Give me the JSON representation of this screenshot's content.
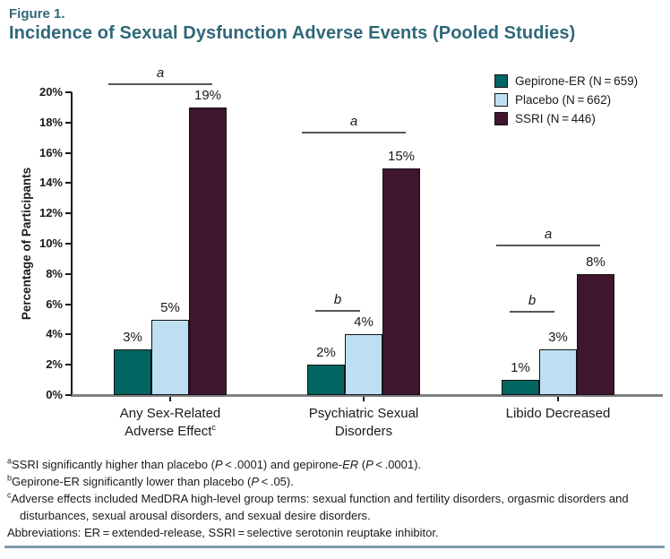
{
  "figure": {
    "label": "Figure 1.",
    "title": "Incidence of Sexual Dysfunction Adverse Events (Pooled Studies)"
  },
  "chart_data": {
    "type": "bar",
    "title": "Incidence of Sexual Dysfunction Adverse Events (Pooled Studies)",
    "ylabel": "Percentage of Participants",
    "ylim": [
      0,
      20
    ],
    "ytick_step": 2,
    "ytick_suffix": "%",
    "value_label_suffix": "%",
    "grid": false,
    "legend_position": "top-right",
    "categories": [
      {
        "name": "Any Sex-Related Adverse Effectᶜ",
        "lines": [
          [
            {
              "t": "Any Sex-Related"
            }
          ],
          [
            {
              "t": "Adverse Effect"
            },
            {
              "t": "c",
              "sup": true
            }
          ]
        ]
      },
      {
        "name": "Psychiatric Sexual Disorders",
        "lines": [
          [
            {
              "t": "Psychiatric Sexual"
            }
          ],
          [
            {
              "t": "Disorders"
            }
          ]
        ]
      },
      {
        "name": "Libido Decreased",
        "lines": [
          [
            {
              "t": "Libido Decreased"
            }
          ]
        ]
      }
    ],
    "series": [
      {
        "name": "Gepirone-ER (N = 659)",
        "color": "#016662",
        "values": [
          3,
          2,
          1
        ]
      },
      {
        "name": "Placebo (N = 662)",
        "color": "#bedff2",
        "values": [
          5,
          4,
          3
        ]
      },
      {
        "name": "SSRI (N = 446)",
        "color": "#40152e",
        "values": [
          19,
          15,
          8
        ]
      }
    ],
    "annotations": [
      {
        "text": "a",
        "category": 0,
        "from_series": 0,
        "to_series": 2,
        "height_pct": 20.5
      },
      {
        "text": "a",
        "category": 1,
        "from_series": 0,
        "to_series": 2,
        "height_pct": 17.3
      },
      {
        "text": "b",
        "category": 1,
        "from_series": 0,
        "to_series": 1,
        "height_pct": 5.5
      },
      {
        "text": "a",
        "category": 2,
        "from_series": 0,
        "to_series": 2,
        "height_pct": 9.8
      },
      {
        "text": "b",
        "category": 2,
        "from_series": 0,
        "to_series": 1,
        "height_pct": 5.45
      }
    ]
  },
  "footnotes": [
    {
      "indent": false,
      "segments": [
        {
          "t": "a",
          "sup": true
        },
        {
          "t": "SSRI significantly higher than placebo ("
        },
        {
          "t": "P",
          "i": true
        },
        {
          "t": " < .0001) and gepirone-"
        },
        {
          "t": "ER",
          "i": true
        },
        {
          "t": " ("
        },
        {
          "t": "P",
          "i": true
        },
        {
          "t": " < .0001)."
        }
      ]
    },
    {
      "indent": false,
      "segments": [
        {
          "t": "b",
          "sup": true
        },
        {
          "t": "Gepirone-ER significantly lower than placebo ("
        },
        {
          "t": "P",
          "i": true
        },
        {
          "t": " < .05)."
        }
      ]
    },
    {
      "indent": false,
      "segments": [
        {
          "t": "c",
          "sup": true
        },
        {
          "t": "Adverse effects included MedDRA high-level group terms: sexual function and fertility disorders, orgasmic disorders and"
        }
      ]
    },
    {
      "indent": true,
      "segments": [
        {
          "t": "disturbances, sexual arousal disorders, and sexual desire disorders."
        }
      ]
    },
    {
      "indent": false,
      "segments": [
        {
          "t": "Abbreviations: ER = extended-release, SSRI = selective serotonin reuptake inhibitor."
        }
      ]
    }
  ]
}
